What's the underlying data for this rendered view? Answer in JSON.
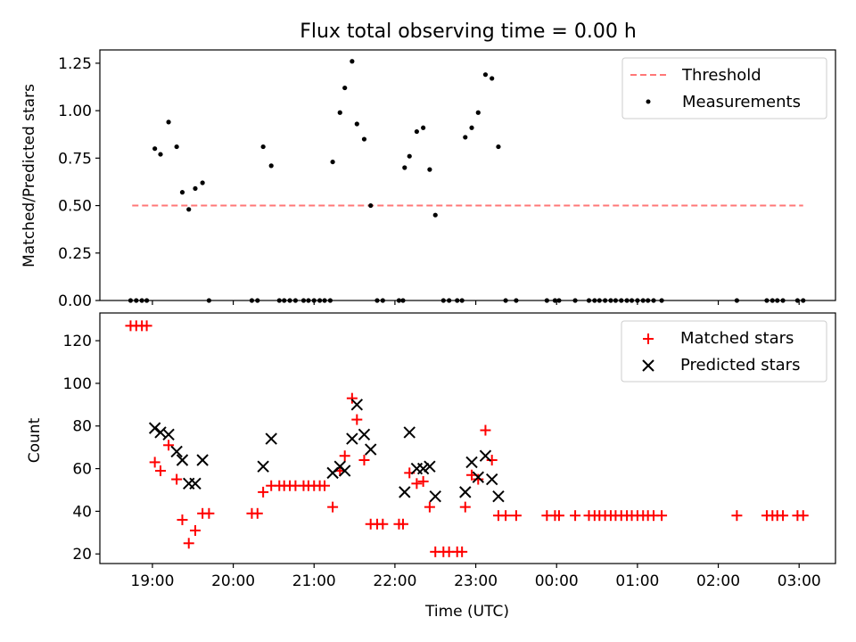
{
  "chart_data": [
    {
      "type": "scatter",
      "title": "Flux total observing time = 0.00 h",
      "ylabel": "Matched/Predicted stars",
      "ylim": [
        0,
        1.32
      ],
      "xlim": [
        18.35,
        27.45
      ],
      "yticks": [
        0.0,
        0.25,
        0.5,
        0.75,
        1.0,
        1.25
      ],
      "ytick_labels": [
        "0.00",
        "0.25",
        "0.50",
        "0.75",
        "1.00",
        "1.25"
      ],
      "legend_position": "top-right",
      "threshold": {
        "name": "Threshold",
        "value": 0.5,
        "x_range": [
          18.75,
          27.05
        ],
        "color": "#ff7777",
        "style": "dashed"
      },
      "series": [
        {
          "name": "Measurements",
          "color": "#000000",
          "marker": "dot",
          "points": [
            [
              18.73,
              0
            ],
            [
              18.8,
              0
            ],
            [
              18.87,
              0
            ],
            [
              18.93,
              0
            ],
            [
              19.03,
              0.8
            ],
            [
              19.1,
              0.77
            ],
            [
              19.2,
              0.94
            ],
            [
              19.3,
              0.81
            ],
            [
              19.37,
              0.57
            ],
            [
              19.45,
              0.48
            ],
            [
              19.53,
              0.59
            ],
            [
              19.62,
              0.62
            ],
            [
              19.7,
              0
            ],
            [
              20.23,
              0
            ],
            [
              20.3,
              0
            ],
            [
              20.37,
              0.81
            ],
            [
              20.47,
              0.71
            ],
            [
              20.57,
              0
            ],
            [
              20.63,
              0
            ],
            [
              20.7,
              0
            ],
            [
              20.77,
              0
            ],
            [
              20.87,
              0
            ],
            [
              20.93,
              0
            ],
            [
              21.0,
              0
            ],
            [
              21.07,
              0
            ],
            [
              21.13,
              0
            ],
            [
              21.2,
              0
            ],
            [
              21.23,
              0.73
            ],
            [
              21.32,
              0.99
            ],
            [
              21.38,
              1.12
            ],
            [
              21.47,
              1.26
            ],
            [
              21.53,
              0.93
            ],
            [
              21.62,
              0.85
            ],
            [
              21.7,
              0.5
            ],
            [
              21.78,
              0
            ],
            [
              21.85,
              0
            ],
            [
              22.05,
              0
            ],
            [
              22.1,
              0
            ],
            [
              22.12,
              0.7
            ],
            [
              22.18,
              0.76
            ],
            [
              22.27,
              0.89
            ],
            [
              22.35,
              0.91
            ],
            [
              22.43,
              0.69
            ],
            [
              22.5,
              0.45
            ],
            [
              22.6,
              0
            ],
            [
              22.67,
              0
            ],
            [
              22.77,
              0
            ],
            [
              22.83,
              0
            ],
            [
              22.87,
              0.86
            ],
            [
              22.95,
              0.91
            ],
            [
              23.03,
              0.99
            ],
            [
              23.12,
              1.19
            ],
            [
              23.2,
              1.17
            ],
            [
              23.28,
              0.81
            ],
            [
              23.37,
              0
            ],
            [
              23.5,
              0
            ],
            [
              23.88,
              0
            ],
            [
              23.98,
              0
            ],
            [
              24.03,
              0
            ],
            [
              24.23,
              0
            ],
            [
              24.4,
              0
            ],
            [
              24.47,
              0
            ],
            [
              24.53,
              0
            ],
            [
              24.6,
              0
            ],
            [
              24.67,
              0
            ],
            [
              24.73,
              0
            ],
            [
              24.8,
              0
            ],
            [
              24.87,
              0
            ],
            [
              24.93,
              0
            ],
            [
              25.0,
              0
            ],
            [
              25.07,
              0
            ],
            [
              25.13,
              0
            ],
            [
              25.2,
              0
            ],
            [
              25.3,
              0
            ],
            [
              26.23,
              0
            ],
            [
              26.6,
              0
            ],
            [
              26.67,
              0
            ],
            [
              26.73,
              0
            ],
            [
              26.8,
              0
            ],
            [
              26.98,
              0
            ],
            [
              27.05,
              0
            ]
          ]
        }
      ]
    },
    {
      "type": "scatter",
      "xlabel": "Time (UTC)",
      "ylabel": "Count",
      "ylim": [
        15.5,
        133
      ],
      "xlim": [
        18.35,
        27.45
      ],
      "yticks": [
        20,
        40,
        60,
        80,
        100,
        120
      ],
      "ytick_labels": [
        "20",
        "40",
        "60",
        "80",
        "100",
        "120"
      ],
      "xticks": [
        19,
        20,
        21,
        22,
        23,
        24,
        25,
        26,
        27
      ],
      "xtick_labels": [
        "19:00",
        "20:00",
        "21:00",
        "22:00",
        "23:00",
        "00:00",
        "01:00",
        "02:00",
        "03:00"
      ],
      "legend_position": "top-right",
      "series": [
        {
          "name": "Matched stars",
          "color": "#ff0000",
          "marker": "plus",
          "points": [
            [
              18.73,
              127
            ],
            [
              18.8,
              127
            ],
            [
              18.87,
              127
            ],
            [
              18.93,
              127
            ],
            [
              19.03,
              63
            ],
            [
              19.1,
              59
            ],
            [
              19.2,
              71
            ],
            [
              19.3,
              55
            ],
            [
              19.37,
              36
            ],
            [
              19.45,
              25
            ],
            [
              19.53,
              31
            ],
            [
              19.62,
              39
            ],
            [
              19.7,
              39
            ],
            [
              20.23,
              39
            ],
            [
              20.3,
              39
            ],
            [
              20.37,
              49
            ],
            [
              20.47,
              52
            ],
            [
              20.57,
              52
            ],
            [
              20.63,
              52
            ],
            [
              20.7,
              52
            ],
            [
              20.77,
              52
            ],
            [
              20.87,
              52
            ],
            [
              20.93,
              52
            ],
            [
              21.0,
              52
            ],
            [
              21.07,
              52
            ],
            [
              21.13,
              52
            ],
            [
              21.23,
              42
            ],
            [
              21.32,
              59
            ],
            [
              21.38,
              66
            ],
            [
              21.47,
              93
            ],
            [
              21.53,
              83
            ],
            [
              21.62,
              64
            ],
            [
              21.7,
              34
            ],
            [
              21.78,
              34
            ],
            [
              21.85,
              34
            ],
            [
              22.05,
              34
            ],
            [
              22.1,
              34
            ],
            [
              22.18,
              58
            ],
            [
              22.27,
              53
            ],
            [
              22.35,
              54
            ],
            [
              22.43,
              42
            ],
            [
              22.5,
              21
            ],
            [
              22.6,
              21
            ],
            [
              22.67,
              21
            ],
            [
              22.77,
              21
            ],
            [
              22.83,
              21
            ],
            [
              22.87,
              42
            ],
            [
              22.95,
              57
            ],
            [
              23.03,
              55
            ],
            [
              23.12,
              78
            ],
            [
              23.2,
              64
            ],
            [
              23.28,
              38
            ],
            [
              23.37,
              38
            ],
            [
              23.5,
              38
            ],
            [
              23.88,
              38
            ],
            [
              23.98,
              38
            ],
            [
              24.03,
              38
            ],
            [
              24.23,
              38
            ],
            [
              24.4,
              38
            ],
            [
              24.47,
              38
            ],
            [
              24.53,
              38
            ],
            [
              24.6,
              38
            ],
            [
              24.67,
              38
            ],
            [
              24.73,
              38
            ],
            [
              24.8,
              38
            ],
            [
              24.87,
              38
            ],
            [
              24.93,
              38
            ],
            [
              25.0,
              38
            ],
            [
              25.07,
              38
            ],
            [
              25.13,
              38
            ],
            [
              25.2,
              38
            ],
            [
              25.3,
              38
            ],
            [
              26.23,
              38
            ],
            [
              26.6,
              38
            ],
            [
              26.67,
              38
            ],
            [
              26.73,
              38
            ],
            [
              26.8,
              38
            ],
            [
              26.98,
              38
            ],
            [
              27.05,
              38
            ]
          ]
        },
        {
          "name": "Predicted stars",
          "color": "#000000",
          "marker": "x",
          "points": [
            [
              19.03,
              79
            ],
            [
              19.1,
              77
            ],
            [
              19.2,
              76
            ],
            [
              19.3,
              68
            ],
            [
              19.37,
              64
            ],
            [
              19.45,
              53
            ],
            [
              19.53,
              53
            ],
            [
              19.62,
              64
            ],
            [
              20.37,
              61
            ],
            [
              20.47,
              74
            ],
            [
              21.23,
              58
            ],
            [
              21.32,
              61
            ],
            [
              21.38,
              59
            ],
            [
              21.47,
              74
            ],
            [
              21.53,
              90
            ],
            [
              21.62,
              76
            ],
            [
              21.7,
              69
            ],
            [
              22.12,
              49
            ],
            [
              22.18,
              77
            ],
            [
              22.27,
              60
            ],
            [
              22.35,
              60
            ],
            [
              22.43,
              61
            ],
            [
              22.5,
              47
            ],
            [
              22.87,
              49
            ],
            [
              22.95,
              63
            ],
            [
              23.03,
              56
            ],
            [
              23.12,
              66
            ],
            [
              23.2,
              55
            ],
            [
              23.28,
              47
            ]
          ]
        }
      ]
    }
  ]
}
